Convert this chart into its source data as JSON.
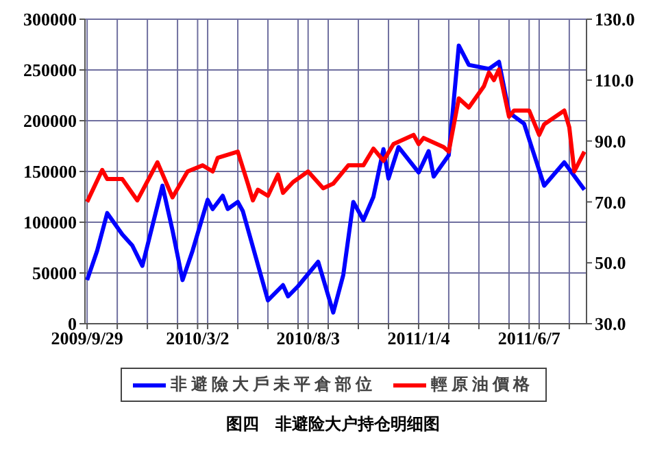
{
  "chart_data": {
    "type": "line",
    "title": "图四　非避险大户持仓明细图",
    "xlim": [
      "2009-09-26",
      "2011-08-26"
    ],
    "xticks": [
      {
        "value": "2009-09-29",
        "label": "2009/9/29"
      },
      {
        "value": "2009-11-10",
        "label": null
      },
      {
        "value": "2009-12-22",
        "label": null
      },
      {
        "value": "2010-02-02",
        "label": null
      },
      {
        "value": "2010-03-02",
        "label": "2010/3/2"
      },
      {
        "value": "2010-03-16",
        "label": null
      },
      {
        "value": "2010-04-27",
        "label": null
      },
      {
        "value": "2010-06-08",
        "label": null
      },
      {
        "value": "2010-07-20",
        "label": null
      },
      {
        "value": "2010-08-03",
        "label": "2010/8/3"
      },
      {
        "value": "2010-08-31",
        "label": null
      },
      {
        "value": "2010-10-12",
        "label": null
      },
      {
        "value": "2010-11-23",
        "label": null
      },
      {
        "value": "2011-01-04",
        "label": "2011/1/4"
      },
      {
        "value": "2011-02-15",
        "label": null
      },
      {
        "value": "2011-03-29",
        "label": null
      },
      {
        "value": "2011-05-10",
        "label": null
      },
      {
        "value": "2011-06-07",
        "label": "2011/6/7"
      },
      {
        "value": "2011-06-21",
        "label": null
      },
      {
        "value": "2011-08-02",
        "label": null
      }
    ],
    "ylim": [
      0,
      300000
    ],
    "yticks": [
      0,
      50000,
      100000,
      150000,
      200000,
      250000,
      300000
    ],
    "y2lim": [
      30,
      130
    ],
    "y2ticks": [
      {
        "value": 30,
        "label": "30.0"
      },
      {
        "value": 50,
        "label": "50.0"
      },
      {
        "value": 70,
        "label": "70.0"
      },
      {
        "value": 90,
        "label": "90.0"
      },
      {
        "value": 110,
        "label": "110.0"
      },
      {
        "value": 130,
        "label": "130.0"
      }
    ],
    "grid": true,
    "legend": "bottom",
    "marker": "none",
    "line_style": "solid",
    "series": [
      {
        "name": "非避險大戶未平倉部位",
        "color": "#0000ff",
        "x": [
          "2009-09-29",
          "2009-10-13",
          "2009-10-27",
          "2009-11-17",
          "2009-12-01",
          "2009-12-15",
          "2010-01-12",
          "2010-01-26",
          "2010-02-09",
          "2010-02-23",
          "2010-03-16",
          "2010-03-23",
          "2010-04-06",
          "2010-04-13",
          "2010-04-27",
          "2010-05-04",
          "2010-06-08",
          "2010-06-29",
          "2010-07-06",
          "2010-07-20",
          "2010-08-17",
          "2010-09-07",
          "2010-09-21",
          "2010-10-05",
          "2010-10-19",
          "2010-11-02",
          "2010-11-16",
          "2010-11-23",
          "2010-12-07",
          "2011-01-04",
          "2011-01-18",
          "2011-01-25",
          "2011-02-15",
          "2011-03-01",
          "2011-03-15",
          "2011-04-12",
          "2011-04-26",
          "2011-05-10",
          "2011-05-31",
          "2011-06-28",
          "2011-07-26",
          "2011-08-23"
        ],
        "values": [
          43000,
          72000,
          109000,
          88000,
          77000,
          57000,
          136000,
          92000,
          43000,
          72000,
          122000,
          113000,
          126000,
          113000,
          120000,
          111000,
          23000,
          38000,
          27000,
          37000,
          61000,
          11000,
          48000,
          120000,
          102000,
          125000,
          172000,
          143000,
          174000,
          149000,
          170000,
          145000,
          166000,
          274000,
          255000,
          251000,
          258000,
          208000,
          197000,
          136000,
          159000,
          132000
        ]
      },
      {
        "name": "輕原油價格",
        "color": "#ff0000",
        "axis": "y2",
        "x": [
          "2009-09-29",
          "2009-10-20",
          "2009-10-27",
          "2009-11-17",
          "2009-12-08",
          "2010-01-05",
          "2010-01-26",
          "2010-02-16",
          "2010-03-09",
          "2010-03-23",
          "2010-03-30",
          "2010-04-27",
          "2010-05-11",
          "2010-05-18",
          "2010-05-25",
          "2010-06-08",
          "2010-06-22",
          "2010-06-29",
          "2010-07-13",
          "2010-08-03",
          "2010-08-24",
          "2010-09-07",
          "2010-09-28",
          "2010-10-19",
          "2010-11-02",
          "2010-11-16",
          "2010-11-30",
          "2010-12-28",
          "2011-01-04",
          "2011-01-11",
          "2011-02-08",
          "2011-02-15",
          "2011-03-01",
          "2011-03-15",
          "2011-04-05",
          "2011-04-12",
          "2011-04-19",
          "2011-04-26",
          "2011-05-10",
          "2011-05-17",
          "2011-06-07",
          "2011-06-21",
          "2011-06-28",
          "2011-07-26",
          "2011-08-02",
          "2011-08-09",
          "2011-08-23"
        ],
        "values": [
          70,
          80.5,
          77.5,
          77.5,
          70.5,
          83,
          71.5,
          80,
          82,
          80,
          84.5,
          86.5,
          76,
          70.5,
          74,
          72,
          79,
          73,
          76.5,
          80,
          74.5,
          76,
          82,
          82,
          87.5,
          83.5,
          89,
          92,
          89,
          91,
          88,
          86.5,
          104,
          101,
          108,
          112.5,
          110,
          113.5,
          98,
          100,
          100,
          92,
          95.5,
          100,
          94.5,
          80,
          86.5
        ]
      }
    ]
  }
}
